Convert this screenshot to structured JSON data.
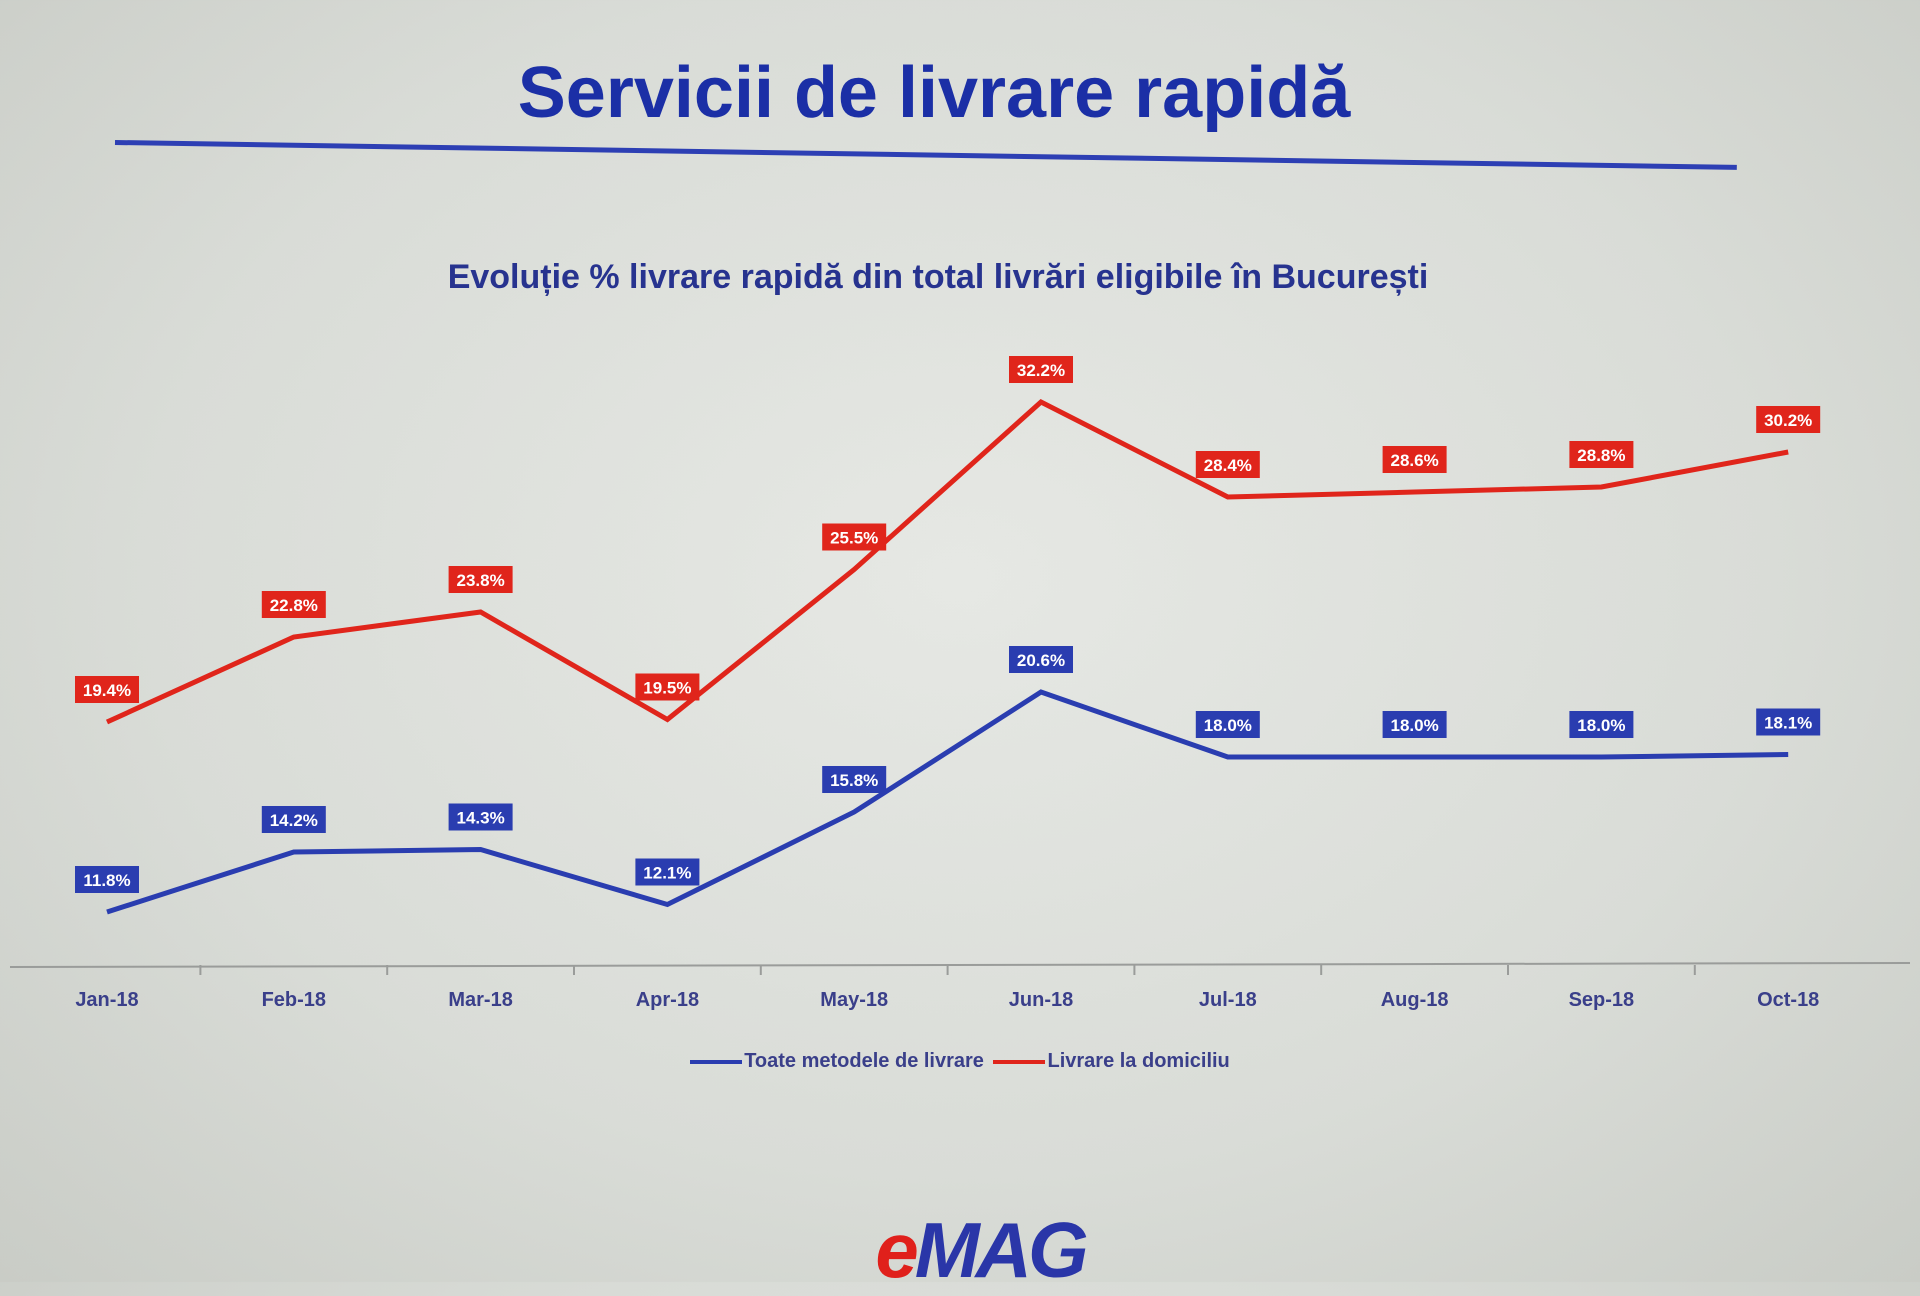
{
  "slide": {
    "title": "Servicii de livrare rapidă",
    "logo_text": "eMAG",
    "logo_e": "e",
    "logo_rest": "MAG"
  },
  "chart_data": {
    "type": "line",
    "title": "Evoluție % livrare rapidă din total livrări eligibile în București",
    "categories": [
      "Jan-18",
      "Feb-18",
      "Mar-18",
      "Apr-18",
      "May-18",
      "Jun-18",
      "Jul-18",
      "Aug-18",
      "Sep-18",
      "Oct-18"
    ],
    "series": [
      {
        "name": "Toate metodele de livrare",
        "color": "#2a3db0",
        "values": [
          11.8,
          14.2,
          14.3,
          12.1,
          15.8,
          20.6,
          18.0,
          18.0,
          18.0,
          18.1
        ],
        "labels": [
          "11.8%",
          "14.2%",
          "14.3%",
          "12.1%",
          "15.8%",
          "20.6%",
          "18.0%",
          "18.0%",
          "18.0%",
          "18.1%"
        ]
      },
      {
        "name": "Livrare la domiciliu",
        "color": "#e0251b",
        "values": [
          19.4,
          22.8,
          23.8,
          19.5,
          25.5,
          32.2,
          28.4,
          28.6,
          28.8,
          30.2
        ],
        "labels": [
          "19.4%",
          "22.8%",
          "23.8%",
          "19.5%",
          "25.5%",
          "32.2%",
          "28.4%",
          "28.6%",
          "28.8%",
          "30.2%"
        ]
      }
    ],
    "y_axis_visible": false,
    "grid": false,
    "legend": "bottom"
  }
}
